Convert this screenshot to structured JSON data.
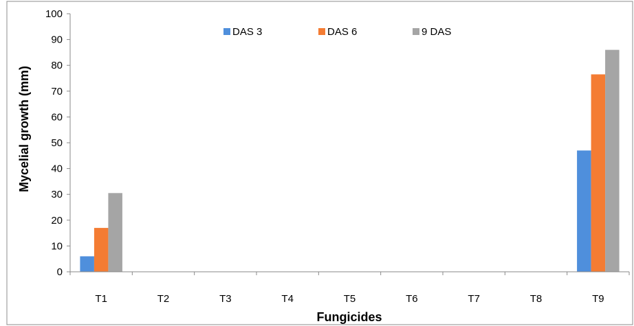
{
  "chart_data": {
    "type": "bar",
    "categories": [
      "T1",
      "T2",
      "T3",
      "T4",
      "T5",
      "T6",
      "T7",
      "T8",
      "T9"
    ],
    "series": [
      {
        "name": "DAS 3",
        "color": "#4F8FDC",
        "values": [
          6,
          0,
          0,
          0,
          0,
          0,
          0,
          0,
          47
        ]
      },
      {
        "name": "DAS 6",
        "color": "#F47C33",
        "values": [
          17,
          0,
          0,
          0,
          0,
          0,
          0,
          0,
          76.5
        ]
      },
      {
        "name": "9 DAS",
        "color": "#A5A5A5",
        "values": [
          30.5,
          0,
          0,
          0,
          0,
          0,
          0,
          0,
          86
        ]
      }
    ],
    "xlabel": "Fungicides",
    "ylabel": "Mycelial  growth (mm)",
    "ylim": [
      0,
      100
    ],
    "yticks": [
      0,
      10,
      20,
      30,
      40,
      50,
      60,
      70,
      80,
      90,
      100
    ],
    "grid": false,
    "legend_position": "top"
  }
}
